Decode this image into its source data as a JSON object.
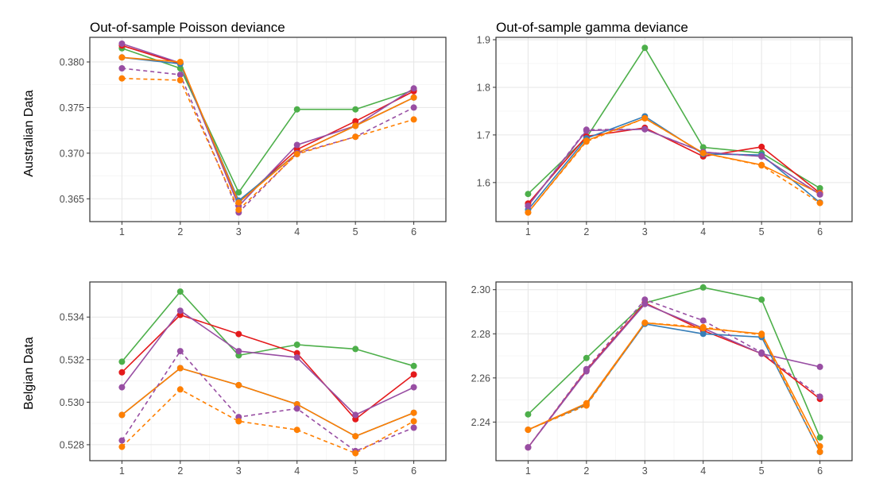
{
  "row_labels": [
    "Australian Data",
    "Belgian Data"
  ],
  "chart_data": [
    {
      "type": "line",
      "title": "Out-of-sample Poisson deviance",
      "x": [
        1,
        2,
        3,
        4,
        5,
        6
      ],
      "xlim": [
        0.45,
        6.55
      ],
      "ylim": [
        0.3625,
        0.3827
      ],
      "yticks": [
        0.365,
        0.37,
        0.375,
        0.38
      ],
      "ytick_labels": [
        "0.365",
        "0.370",
        "0.375",
        "0.380"
      ],
      "grid": true,
      "series": [
        {
          "color": "#4DAF4A",
          "dash": "solid",
          "values": [
            0.3815,
            0.3793,
            0.3657,
            0.3748,
            0.3748,
            0.3769
          ]
        },
        {
          "color": "#E41A1C",
          "dash": "solid",
          "values": [
            0.3818,
            0.3798,
            0.3646,
            0.3704,
            0.3735,
            0.3768
          ]
        },
        {
          "color": "#984EA3",
          "dash": "solid",
          "values": [
            0.382,
            0.3799,
            0.3642,
            0.3709,
            0.373,
            0.3771
          ]
        },
        {
          "color": "#377EB8",
          "dash": "solid",
          "values": [
            0.3805,
            0.3798,
            0.3648,
            0.37,
            0.373,
            0.3761
          ]
        },
        {
          "color": "#FF7F00",
          "dash": "solid",
          "values": [
            0.3805,
            0.38,
            0.3646,
            0.37,
            0.373,
            0.3761
          ]
        },
        {
          "color": "#984EA3",
          "dash": "dashed",
          "values": [
            0.3793,
            0.3786,
            0.3635,
            0.37,
            0.3718,
            0.375
          ]
        },
        {
          "color": "#FF7F00",
          "dash": "dashed",
          "values": [
            0.3782,
            0.378,
            0.3638,
            0.3699,
            0.3718,
            0.3737
          ]
        }
      ]
    },
    {
      "type": "line",
      "title": "Out-of-sample gamma deviance",
      "x": [
        1,
        2,
        3,
        4,
        5,
        6
      ],
      "xlim": [
        0.45,
        6.55
      ],
      "ylim": [
        1.518,
        1.905
      ],
      "yticks": [
        1.6,
        1.7,
        1.8,
        1.9
      ],
      "ytick_labels": [
        "1.6",
        "1.7",
        "1.8",
        "1.9"
      ],
      "grid": true,
      "series": [
        {
          "color": "#4DAF4A",
          "dash": "solid",
          "values": [
            1.576,
            1.694,
            1.883,
            1.674,
            1.662,
            1.588
          ]
        },
        {
          "color": "#E41A1C",
          "dash": "solid",
          "values": [
            1.556,
            1.697,
            1.715,
            1.655,
            1.675,
            1.578
          ]
        },
        {
          "color": "#984EA3",
          "dash": "solid",
          "values": [
            1.551,
            1.709,
            1.712,
            1.664,
            1.655,
            1.575
          ]
        },
        {
          "color": "#377EB8",
          "dash": "solid",
          "values": [
            1.543,
            1.693,
            1.739,
            1.66,
            1.658,
            1.558
          ]
        },
        {
          "color": "#FF7F00",
          "dash": "solid",
          "values": [
            1.537,
            1.688,
            1.735,
            1.662,
            1.637,
            1.577
          ]
        },
        {
          "color": "#984EA3",
          "dash": "dashed",
          "values": [
            1.551,
            1.711,
            1.712,
            1.664,
            1.655,
            1.575
          ]
        },
        {
          "color": "#FF7F00",
          "dash": "dashed",
          "values": [
            1.537,
            1.686,
            1.735,
            1.662,
            1.636,
            1.557
          ]
        }
      ]
    },
    {
      "type": "line",
      "title": "",
      "x": [
        1,
        2,
        3,
        4,
        5,
        6
      ],
      "xlim": [
        0.45,
        6.55
      ],
      "ylim": [
        0.52725,
        0.53565
      ],
      "yticks": [
        0.528,
        0.53,
        0.532,
        0.534
      ],
      "ytick_labels": [
        "0.528",
        "0.530",
        "0.532",
        "0.534"
      ],
      "grid": true,
      "series": [
        {
          "color": "#4DAF4A",
          "dash": "solid",
          "values": [
            0.5319,
            0.5352,
            0.5322,
            0.5327,
            0.5325,
            0.5317
          ]
        },
        {
          "color": "#E41A1C",
          "dash": "solid",
          "values": [
            0.5314,
            0.5341,
            0.5332,
            0.5323,
            0.5292,
            0.5313
          ]
        },
        {
          "color": "#984EA3",
          "dash": "solid",
          "values": [
            0.5307,
            0.5343,
            0.5324,
            0.5321,
            0.5294,
            0.5307
          ]
        },
        {
          "color": "#377EB8",
          "dash": "solid",
          "values": [
            0.5294,
            0.5316,
            0.5308,
            0.5299,
            0.5284,
            0.5295
          ]
        },
        {
          "color": "#FF7F00",
          "dash": "solid",
          "values": [
            0.5294,
            0.5316,
            0.5308,
            0.5299,
            0.5284,
            0.5295
          ]
        },
        {
          "color": "#984EA3",
          "dash": "dashed",
          "values": [
            0.5282,
            0.5324,
            0.5293,
            0.5297,
            0.5277,
            0.5288
          ]
        },
        {
          "color": "#FF7F00",
          "dash": "dashed",
          "values": [
            0.5279,
            0.5306,
            0.5291,
            0.5287,
            0.5276,
            0.5291
          ]
        }
      ]
    },
    {
      "type": "line",
      "title": "",
      "x": [
        1,
        2,
        3,
        4,
        5,
        6
      ],
      "xlim": [
        0.45,
        6.55
      ],
      "ylim": [
        2.2225,
        2.3035
      ],
      "yticks": [
        2.24,
        2.26,
        2.28,
        2.3
      ],
      "ytick_labels": [
        "2.24",
        "2.26",
        "2.28",
        "2.30"
      ],
      "grid": true,
      "series": [
        {
          "color": "#4DAF4A",
          "dash": "solid",
          "values": [
            2.2435,
            2.269,
            2.294,
            2.301,
            2.2955,
            2.233
          ]
        },
        {
          "color": "#E41A1C",
          "dash": "solid",
          "values": [
            2.2285,
            2.2635,
            2.294,
            2.2815,
            2.271,
            2.2505
          ]
        },
        {
          "color": "#984EA3",
          "dash": "solid",
          "values": [
            2.2285,
            2.263,
            2.2935,
            2.2825,
            2.271,
            2.265
          ]
        },
        {
          "color": "#377EB8",
          "dash": "solid",
          "values": [
            2.2365,
            2.248,
            2.2845,
            2.28,
            2.2785,
            2.2265
          ]
        },
        {
          "color": "#FF7F00",
          "dash": "solid",
          "values": [
            2.2365,
            2.2485,
            2.285,
            2.2825,
            2.28,
            2.229
          ]
        },
        {
          "color": "#984EA3",
          "dash": "dashed",
          "values": [
            2.2285,
            2.264,
            2.2955,
            2.286,
            2.2715,
            2.2515
          ]
        },
        {
          "color": "#FF7F00",
          "dash": "dashed",
          "values": [
            2.2365,
            2.2475,
            2.285,
            2.283,
            2.2795,
            2.2265
          ]
        }
      ]
    }
  ]
}
